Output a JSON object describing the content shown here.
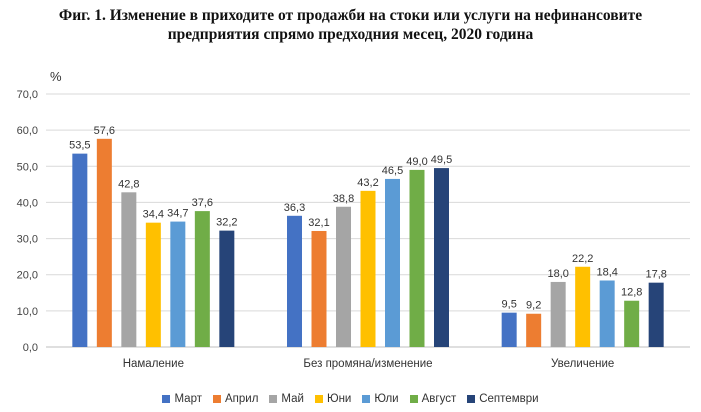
{
  "title_line1": "Фиг. 1. Изменение в приходите от продажби на стоки или услуги на нефинансовите",
  "title_line2": "предприятия спрямо предходния месец, 2020 година",
  "chart_data": {
    "type": "bar",
    "ylabel": "%",
    "ylim": [
      0,
      70
    ],
    "yticks": [
      "0,0",
      "10,0",
      "20,0",
      "30,0",
      "40,0",
      "50,0",
      "60,0",
      "70,0"
    ],
    "grid": true,
    "legend_position": "bottom",
    "categories": [
      "Намаление",
      "Без промяна/изменение",
      "Увеличение"
    ],
    "series": [
      {
        "name": "Март",
        "color": "#4472C4",
        "values": [
          53.5,
          36.3,
          9.5
        ],
        "labels": [
          "53,5",
          "36,3",
          "9,5"
        ]
      },
      {
        "name": "Април",
        "color": "#ED7D31",
        "values": [
          57.6,
          32.1,
          9.2
        ],
        "labels": [
          "57,6",
          "32,1",
          "9,2"
        ]
      },
      {
        "name": "Май",
        "color": "#A5A5A5",
        "values": [
          42.8,
          38.8,
          18.0
        ],
        "labels": [
          "42,8",
          "38,8",
          "18,0"
        ]
      },
      {
        "name": "Юни",
        "color": "#FFC000",
        "values": [
          34.4,
          43.2,
          22.2
        ],
        "labels": [
          "34,4",
          "43,2",
          "22,2"
        ]
      },
      {
        "name": "Юли",
        "color": "#5B9BD5",
        "values": [
          34.7,
          46.5,
          18.4
        ],
        "labels": [
          "34,7",
          "46,5",
          "18,4"
        ]
      },
      {
        "name": "Август",
        "color": "#70AD47",
        "values": [
          37.6,
          49.0,
          12.8
        ],
        "labels": [
          "37,6",
          "49,0",
          "12,8"
        ]
      },
      {
        "name": "Септември",
        "color": "#264478",
        "values": [
          32.2,
          49.5,
          17.8
        ],
        "labels": [
          "32,2",
          "49,5",
          "17,8"
        ]
      }
    ]
  }
}
